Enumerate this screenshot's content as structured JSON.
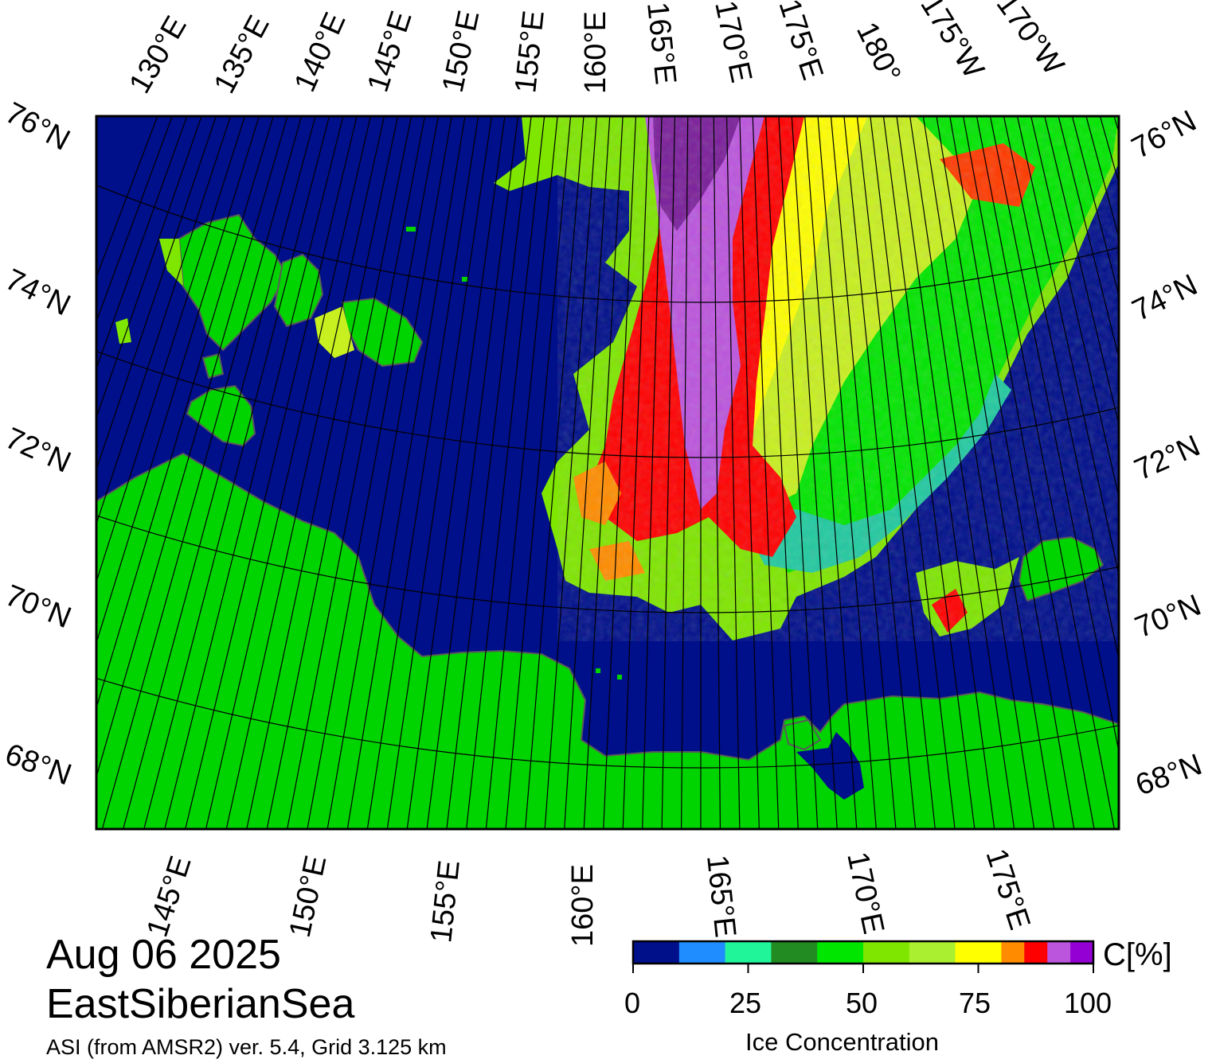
{
  "date_label": "Aug 06 2025",
  "region_label": "EastSiberianSea",
  "source_label": "ASI (from AMSR2) ver. 5.4,  Grid 3.125 km",
  "legend": {
    "title": "Ice Concentration",
    "unit": "C[%]",
    "tick_labels": [
      "0",
      "25",
      "50",
      "75",
      "100"
    ],
    "colors": [
      "#000f8a",
      "#1f8cff",
      "#21f59a",
      "#228b22",
      "#00e600",
      "#7fe600",
      "#aaf030",
      "#ffff00",
      "#ff8c00",
      "#ff0000",
      "#bb55dd",
      "#9400d3"
    ]
  },
  "top_longitude_labels": [
    "130°E",
    "135°E",
    "140°E",
    "145°E",
    "150°E",
    "155°E",
    "160°E",
    "165°E",
    "170°E",
    "175°E",
    "180°",
    "175°W",
    "170°W"
  ],
  "bottom_longitude_labels": [
    "145°E",
    "150°E",
    "155°E",
    "160°E",
    "165°E",
    "170°E",
    "175°E"
  ],
  "left_latitude_labels": [
    "76°N",
    "74°N",
    "72°N",
    "70°N",
    "68°N"
  ],
  "right_latitude_labels": [
    "76°N",
    "74°N",
    "72°N",
    "70°N",
    "68°N"
  ],
  "colors": {
    "ocean": "#000f8a",
    "land": "#00d400",
    "grid": "#000000"
  }
}
